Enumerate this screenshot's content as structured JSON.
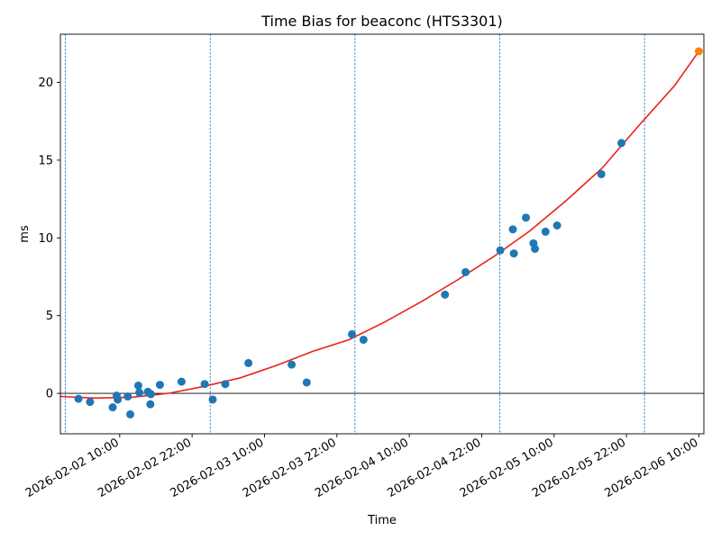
{
  "chart_data": {
    "type": "scatter",
    "title": "Time Bias for beaconc (HTS3301)",
    "xlabel": "Time",
    "ylabel": "ms",
    "x_ticks": [
      "2026-02-02 10:00",
      "2026-02-02 22:00",
      "2026-02-03 10:00",
      "2026-02-03 22:00",
      "2026-02-04 10:00",
      "2026-02-04 22:00",
      "2026-02-05 10:00",
      "2026-02-05 22:00",
      "2026-02-06 10:00"
    ],
    "xlim": [
      "2026-02-02 00:10",
      "2026-02-06 10:50"
    ],
    "y_ticks": [
      0,
      5,
      10,
      15,
      20
    ],
    "ylim": [
      -2.6,
      23.1
    ],
    "zero_line": 0,
    "vertical_markers": [
      "2026-02-02 01:00",
      "2026-02-03 01:00",
      "2026-02-04 01:00",
      "2026-02-05 01:00",
      "2026-02-06 01:00"
    ],
    "series": [
      {
        "kind": "scatter",
        "color": "#1f77b4",
        "points": [
          {
            "x": "2026-02-02 03:10",
            "y": -0.35
          },
          {
            "x": "2026-02-02 05:05",
            "y": -0.55
          },
          {
            "x": "2026-02-02 08:50",
            "y": -0.9
          },
          {
            "x": "2026-02-02 09:30",
            "y": -0.15
          },
          {
            "x": "2026-02-02 09:40",
            "y": -0.4
          },
          {
            "x": "2026-02-02 11:20",
            "y": -0.2
          },
          {
            "x": "2026-02-02 11:45",
            "y": -1.35
          },
          {
            "x": "2026-02-02 13:05",
            "y": 0.5
          },
          {
            "x": "2026-02-02 13:15",
            "y": 0.05
          },
          {
            "x": "2026-02-02 14:40",
            "y": 0.1
          },
          {
            "x": "2026-02-02 15:05",
            "y": -0.7
          },
          {
            "x": "2026-02-02 15:10",
            "y": -0.05
          },
          {
            "x": "2026-02-02 16:40",
            "y": 0.55
          },
          {
            "x": "2026-02-02 20:15",
            "y": 0.75
          },
          {
            "x": "2026-02-03 00:05",
            "y": 0.6
          },
          {
            "x": "2026-02-03 01:25",
            "y": -0.4
          },
          {
            "x": "2026-02-03 03:30",
            "y": 0.6
          },
          {
            "x": "2026-02-03 07:20",
            "y": 1.95
          },
          {
            "x": "2026-02-03 14:30",
            "y": 1.85
          },
          {
            "x": "2026-02-03 17:00",
            "y": 0.7
          },
          {
            "x": "2026-02-04 00:30",
            "y": 3.8
          },
          {
            "x": "2026-02-04 02:25",
            "y": 3.45
          },
          {
            "x": "2026-02-04 15:55",
            "y": 6.35
          },
          {
            "x": "2026-02-04 19:20",
            "y": 7.8
          },
          {
            "x": "2026-02-05 01:05",
            "y": 9.2
          },
          {
            "x": "2026-02-05 03:10",
            "y": 10.55
          },
          {
            "x": "2026-02-05 03:20",
            "y": 9.0
          },
          {
            "x": "2026-02-05 05:20",
            "y": 11.3
          },
          {
            "x": "2026-02-05 06:35",
            "y": 9.65
          },
          {
            "x": "2026-02-05 06:50",
            "y": 9.3
          },
          {
            "x": "2026-02-05 08:35",
            "y": 10.4
          },
          {
            "x": "2026-02-05 10:30",
            "y": 10.8
          },
          {
            "x": "2026-02-05 17:50",
            "y": 14.1
          },
          {
            "x": "2026-02-05 21:10",
            "y": 16.1
          }
        ]
      },
      {
        "kind": "highlight",
        "color": "#ff7f0e",
        "points": [
          {
            "x": "2026-02-06 10:00",
            "y": 22.0
          }
        ]
      },
      {
        "kind": "fit",
        "color": "#e8221b",
        "points": [
          {
            "x": "2026-02-02 00:10",
            "y": -0.2
          },
          {
            "x": "2026-02-02 06:00",
            "y": -0.3
          },
          {
            "x": "2026-02-02 12:00",
            "y": -0.25
          },
          {
            "x": "2026-02-02 18:00",
            "y": 0.0
          },
          {
            "x": "2026-02-03 00:00",
            "y": 0.45
          },
          {
            "x": "2026-02-03 06:00",
            "y": 1.0
          },
          {
            "x": "2026-02-03 12:00",
            "y": 1.8
          },
          {
            "x": "2026-02-03 18:00",
            "y": 2.7
          },
          {
            "x": "2026-02-04 00:00",
            "y": 3.45
          },
          {
            "x": "2026-02-04 06:00",
            "y": 4.6
          },
          {
            "x": "2026-02-04 12:00",
            "y": 5.9
          },
          {
            "x": "2026-02-04 18:00",
            "y": 7.3
          },
          {
            "x": "2026-02-05 00:00",
            "y": 8.8
          },
          {
            "x": "2026-02-05 06:00",
            "y": 10.45
          },
          {
            "x": "2026-02-05 12:00",
            "y": 12.4
          },
          {
            "x": "2026-02-05 18:00",
            "y": 14.5
          },
          {
            "x": "2026-02-06 00:00",
            "y": 17.2
          },
          {
            "x": "2026-02-06 06:00",
            "y": 19.8
          },
          {
            "x": "2026-02-06 10:00",
            "y": 22.0
          }
        ]
      }
    ],
    "grid": false,
    "legend": "none"
  }
}
